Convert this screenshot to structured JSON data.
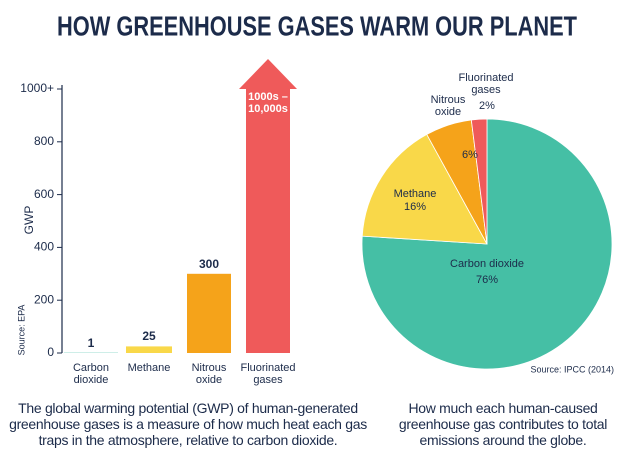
{
  "title": "HOW GREENHOUSE GASES WARM OUR PLANET",
  "chart_data": [
    {
      "type": "bar",
      "ylabel": "GWP",
      "source": "Source: EPA",
      "categories": [
        "Carbon dioxide",
        "Methane",
        "Nitrous oxide",
        "Fluorinated gases"
      ],
      "values": [
        1,
        25,
        300,
        1000
      ],
      "value_labels": [
        "1",
        "25",
        "300",
        "1000s – 10,000s"
      ],
      "colors": [
        "#45bfa5",
        "#f9d849",
        "#f5a31a",
        "#ef5a5a"
      ],
      "ylim": [
        0,
        1000
      ],
      "yticks": [
        0,
        200,
        400,
        600,
        800,
        {
          "value": 1000,
          "label": "1000+"
        }
      ],
      "caption": "The global warming potential (GWP) of human-generated greenhouse gases is a measure of how much heat each gas traps in the atmosphere, relative to carbon dioxide."
    },
    {
      "type": "pie",
      "source": "Source: IPCC (2014)",
      "categories": [
        "Carbon dioxide",
        "Methane",
        "Nitrous oxide",
        "Fluorinated gases"
      ],
      "values": [
        76,
        16,
        6,
        2
      ],
      "value_labels": [
        "76%",
        "16%",
        "6%",
        "2%"
      ],
      "colors": [
        "#45bfa5",
        "#f9d849",
        "#f5a31a",
        "#ef5a5a"
      ],
      "caption": "How much each human-caused greenhouse gas contributes to total emissions around the globe."
    }
  ]
}
